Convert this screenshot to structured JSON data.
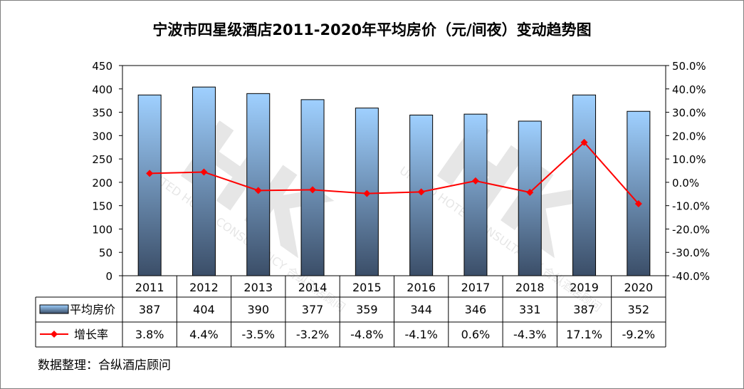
{
  "title": "宁波市四星级酒店2011-2020年平均房价（元/间夜）变动趋势图",
  "source": "数据整理：合纵酒店顾问",
  "chart_data": {
    "type": "bar+line",
    "title": "宁波市四星级酒店2011-2020年平均房价（元/间夜）变动趋势图",
    "categories": [
      "2011",
      "2012",
      "2013",
      "2014",
      "2015",
      "2016",
      "2017",
      "2018",
      "2019",
      "2020"
    ],
    "series": [
      {
        "name": "平均房价",
        "type": "bar",
        "axis": "left",
        "values": [
          387,
          404,
          390,
          377,
          359,
          344,
          346,
          331,
          387,
          352
        ],
        "labels": [
          "387",
          "404",
          "390",
          "377",
          "359",
          "344",
          "346",
          "331",
          "387",
          "352"
        ],
        "color_top": "#9fd0ff",
        "color_bottom": "#3b4e68"
      },
      {
        "name": "增长率",
        "type": "line",
        "axis": "right",
        "values": [
          3.8,
          4.4,
          -3.5,
          -3.2,
          -4.8,
          -4.1,
          0.6,
          -4.3,
          17.1,
          -9.2
        ],
        "labels": [
          "3.8%",
          "4.4%",
          "-3.5%",
          "-3.2%",
          "-4.8%",
          "-4.1%",
          "0.6%",
          "-4.3%",
          "17.1%",
          "-9.2%"
        ],
        "color": "#ff0000"
      }
    ],
    "ylim_left": [
      0,
      450
    ],
    "yticks_left": [
      "0",
      "50",
      "100",
      "150",
      "200",
      "250",
      "300",
      "350",
      "400",
      "450"
    ],
    "ylim_right": [
      -40,
      50
    ],
    "yticks_right": [
      "-40.0%",
      "-30.0%",
      "-20.0%",
      "-10.0%",
      "0.0%",
      "10.0%",
      "20.0%",
      "30.0%",
      "40.0%",
      "50.0%"
    ],
    "grid": false,
    "legend": "data-table",
    "watermark": "UNITED HOTEL CONSULTANCY 合纵酒店顾问"
  }
}
